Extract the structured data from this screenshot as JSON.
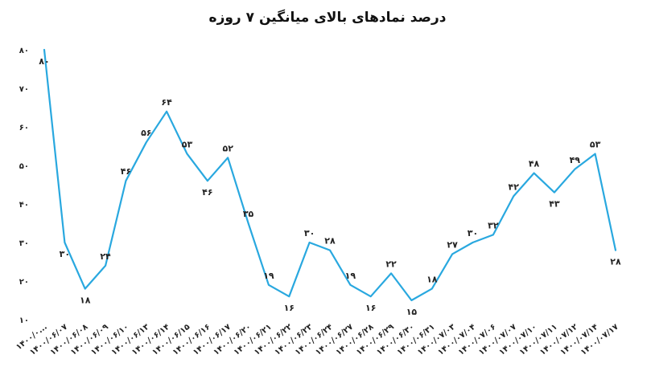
{
  "chart_data": {
    "type": "line",
    "title": "درصد نمادهای بالای میانگین ۷ روزه",
    "xlabel": "",
    "ylabel": "",
    "ylim": [
      10,
      80
    ],
    "yticks": [
      "۱۰",
      "۲۰",
      "۳۰",
      "۴۰",
      "۵۰",
      "۶۰",
      "۷۰",
      "۸۰"
    ],
    "grid": false,
    "line_color": "#29a8df",
    "categories": [
      "۱۴۰۰/۰...",
      "۱۴۰۰/۰۶/۰۷",
      "۱۴۰۰/۰۶/۰۸",
      "۱۴۰۰/۰۶/۰۹",
      "۱۴۰۰/۰۶/۱۰",
      "۱۴۰۰/۰۶/۱۳",
      "۱۴۰۰/۰۶/۱۴",
      "۱۴۰۰/۰۶/۱۵",
      "۱۴۰۰/۰۶/۱۶",
      "۱۴۰۰/۰۶/۱۷",
      "۱۴۰۰/۰۶/۲۰",
      "۱۴۰۰/۰۶/۲۱",
      "۱۴۰۰/۰۶/۲۲",
      "۱۴۰۰/۰۶/۲۳",
      "۱۴۰۰/۰۶/۲۴",
      "۱۴۰۰/۰۶/۲۷",
      "۱۴۰۰/۰۶/۲۸",
      "۱۴۰۰/۰۶/۲۹",
      "۱۴۰۰/۰۶/۳۰",
      "۱۴۰۰/۰۶/۳۱",
      "۱۴۰۰/۰۷/۰۳",
      "۱۴۰۰/۰۷/۰۴",
      "۱۴۰۰/۰۷/۰۶",
      "۱۴۰۰/۰۷/۰۷",
      "۱۴۰۰/۰۷/۱۰",
      "۱۴۰۰/۰۷/۱۱",
      "۱۴۰۰/۰۷/۱۲",
      "۱۴۰۰/۰۷/۱۴",
      "۱۴۰۰/۰۷/۱۷"
    ],
    "values": [
      80,
      30,
      18,
      24,
      46,
      56,
      64,
      53,
      46,
      52,
      35,
      19,
      16,
      30,
      28,
      19,
      16,
      22,
      15,
      18,
      27,
      30,
      32,
      42,
      48,
      43,
      49,
      53,
      28
    ],
    "data_labels": [
      "۸۰",
      "۳۰",
      "۱۸",
      "۲۴",
      "۴۶",
      "۵۶",
      "۶۴",
      "۵۳",
      "۴۶",
      "۵۲",
      "۳۵",
      "۱۹",
      "۱۶",
      "۳۰",
      "۲۸",
      "۱۹",
      "۱۶",
      "۲۲",
      "۱۵",
      "۱۸",
      "۲۷",
      "۳۰",
      "۳۲",
      "۴۲",
      "۴۸",
      "۴۳",
      "۴۹",
      "۵۳",
      "۲۸"
    ],
    "label_positions": [
      "below",
      "below",
      "below",
      "above",
      "above",
      "above",
      "above",
      "above",
      "below",
      "above",
      "above",
      "above",
      "below",
      "above",
      "above",
      "above",
      "below",
      "above",
      "below",
      "above",
      "above",
      "above",
      "above",
      "above",
      "above",
      "below",
      "above",
      "above",
      "below"
    ]
  }
}
